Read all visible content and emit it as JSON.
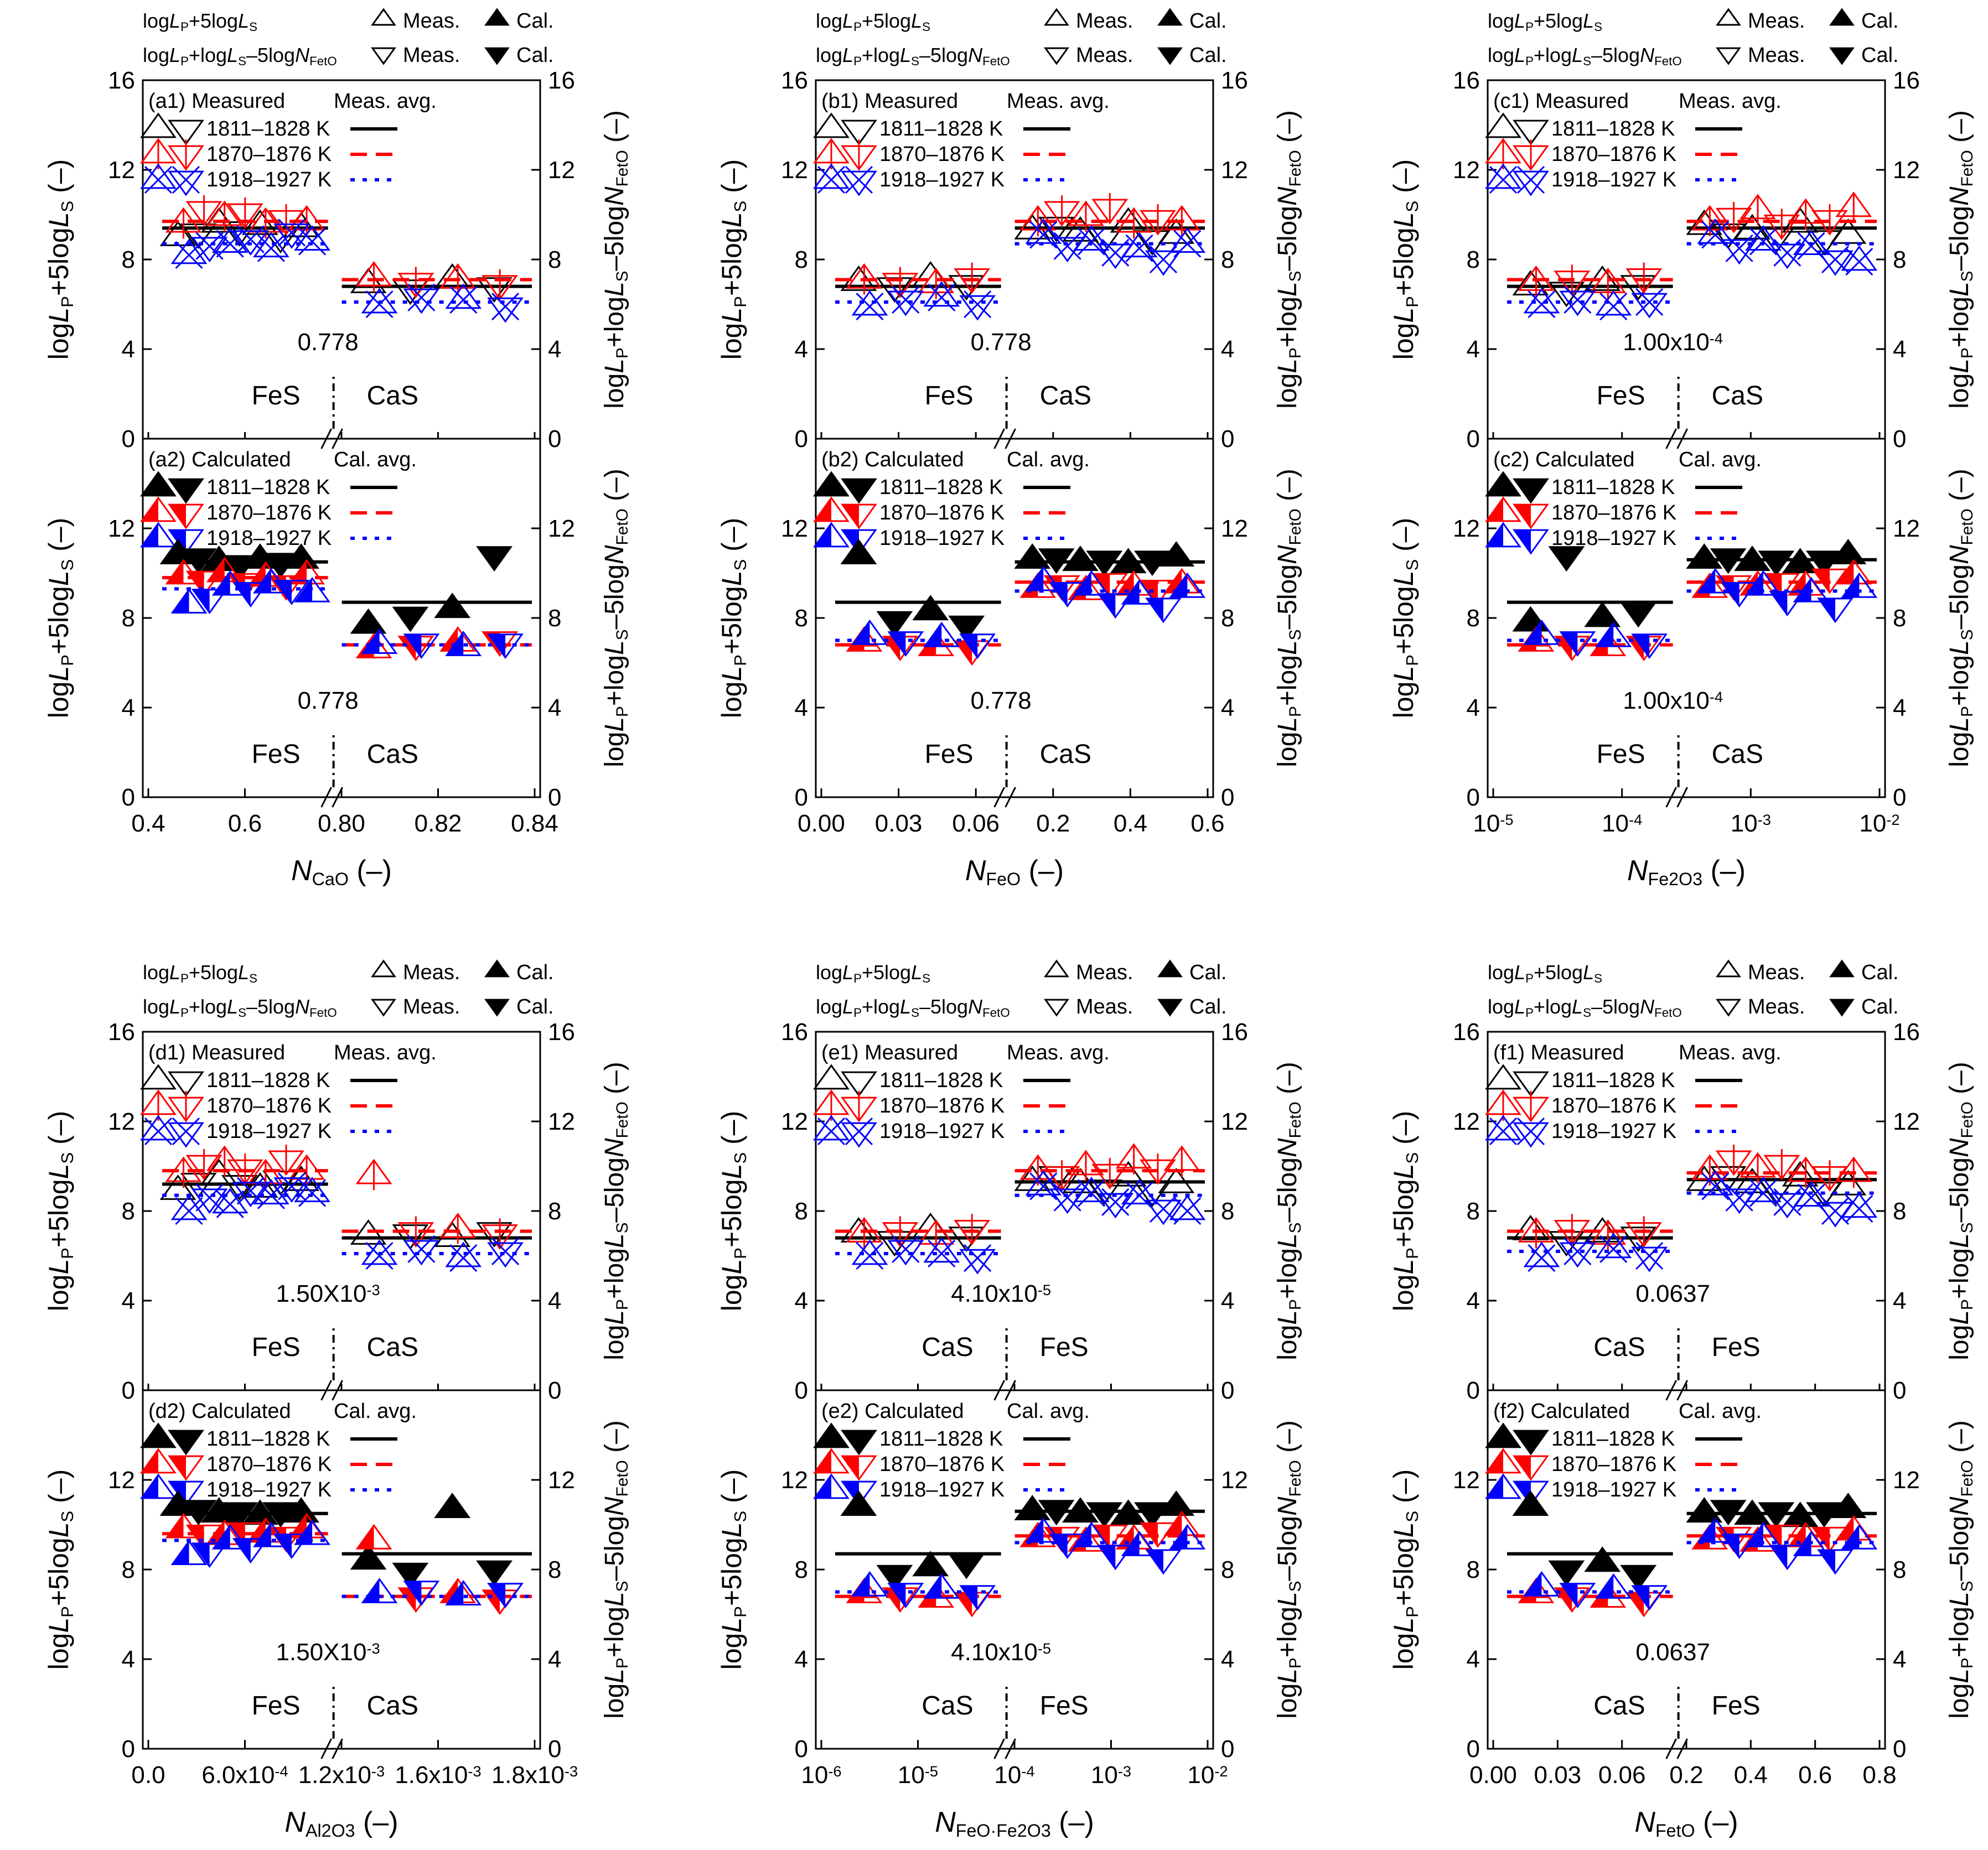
{
  "figure": {
    "type": "multi-panel scatter plot",
    "panel_ids": [
      "a",
      "b",
      "c",
      "d",
      "e",
      "f"
    ]
  },
  "legend_text": {
    "row1_label": "logLP+5logLS",
    "row2_label": "logLP+logLS–5logNFetO",
    "meas": "Meas.",
    "cal": "Cal.",
    "meas_avg": "Meas. avg.",
    "cal_avg": "Cal. avg.",
    "measured": "Measured",
    "calculated": "Calculated",
    "temps": [
      "1811–1828 K",
      "1870–1876 K",
      "1918–1927 K"
    ]
  },
  "axis_text": {
    "y_left": "logLP+5logLS (–)",
    "y_right": "logLP+logLS–5logNFetO (–)",
    "dash_unit": "(–)"
  },
  "colors": {
    "T1": "#000000",
    "T2": "#ff0000",
    "T3": "#0000ff",
    "extra": "#00cc00"
  },
  "chart_data": [
    {
      "id": "a",
      "type": "scatter",
      "xlabel": "NCaO (–)",
      "x_main": "N",
      "x_sub": "CaO",
      "ylim": [
        0,
        16
      ],
      "yticks": [
        "0",
        "4",
        "8",
        "12",
        "16"
      ],
      "xticks": [
        "0.4",
        "0.6",
        "0.80",
        "0.82",
        "0.84"
      ],
      "break_value": "0.778",
      "left_phase": "FeS",
      "right_phase": "CaS",
      "top": {
        "tag": "(a1)",
        "avg": {
          "T1": [
            9.4,
            6.8
          ],
          "T2": [
            9.7,
            7.1
          ],
          "T3": [
            8.7,
            6.1
          ]
        },
        "left": {
          "T1": [
            9.0,
            9.2,
            9.6,
            9.3,
            9.5,
            9.0,
            9.4
          ],
          "T2": [
            9.6,
            10.2,
            9.9,
            10.1,
            9.6,
            9.8,
            9.7
          ],
          "T3": [
            8.2,
            8.6,
            8.7,
            8.9,
            8.5,
            9.2,
            8.8
          ]
        },
        "right": {
          "T1": [
            6.9,
            6.7,
            7.1,
            6.8
          ],
          "T2": [
            7.2,
            7.0,
            7.1,
            6.9
          ],
          "T3": [
            6.0,
            6.3,
            6.2,
            5.9
          ]
        }
      },
      "bottom": {
        "tag": "(a2)",
        "avg": {
          "T1": [
            10.5,
            8.7
          ],
          "T2": [
            9.8,
            6.8
          ],
          "T3": [
            9.3,
            6.8
          ]
        },
        "left": {
          "T1": [
            10.8,
            10.7,
            10.5,
            10.4,
            10.6,
            10.5,
            10.6
          ],
          "T2": [
            9.9,
            9.7,
            10.0,
            9.6,
            9.8,
            9.5,
            9.9
          ],
          "T3": [
            8.6,
            8.9,
            9.4,
            9.2,
            9.5,
            9.3,
            9.1
          ]
        },
        "right": {
          "T1": [
            7.7,
            8.1,
            8.4,
            10.8
          ],
          "T2": [
            6.6,
            6.8,
            6.9,
            7.0
          ],
          "T3": [
            6.8,
            6.9,
            6.7,
            6.9
          ]
        }
      }
    },
    {
      "id": "b",
      "type": "scatter",
      "xlabel": "NFeO (–)",
      "x_main": "N",
      "x_sub": "FeO",
      "ylim": [
        0,
        16
      ],
      "yticks": [
        "0",
        "4",
        "8",
        "12",
        "16"
      ],
      "xticks": [
        "0.00",
        "0.03",
        "0.06",
        "0.2",
        "0.4",
        "0.6"
      ],
      "break_value": "0.778",
      "left_phase": "FeS",
      "right_phase": "CaS",
      "top": {
        "tag": "(b1)",
        "avg": {
          "T1": [
            6.8,
            9.4
          ],
          "T2": [
            7.1,
            9.7
          ],
          "T3": [
            6.1,
            8.7
          ]
        },
        "left": {
          "T1": [
            7.0,
            6.8,
            7.2,
            6.9
          ],
          "T2": [
            7.1,
            7.0,
            6.9,
            7.2
          ],
          "T3": [
            5.9,
            6.2,
            6.3,
            6.0
          ]
        },
        "right": {
          "T1": [
            9.3,
            9.5,
            9.2,
            9.0,
            9.6,
            8.9,
            9.1
          ],
          "T2": [
            9.7,
            10.2,
            9.9,
            10.3,
            9.6,
            9.8,
            9.7
          ],
          "T3": [
            9.1,
            8.6,
            8.8,
            8.3,
            8.5,
            8.0,
            8.7
          ]
        }
      },
      "bottom": {
        "tag": "(b2)",
        "avg": {
          "T1": [
            8.7,
            10.5
          ],
          "T2": [
            6.8,
            9.6
          ],
          "T3": [
            7.0,
            9.2
          ]
        },
        "left": {
          "T1": [
            10.8,
            7.9,
            8.3,
            7.7
          ],
          "T2": [
            6.9,
            6.8,
            6.7,
            6.6
          ],
          "T3": [
            7.2,
            7.0,
            7.1,
            6.9
          ]
        },
        "right": {
          "T1": [
            10.6,
            10.7,
            10.5,
            10.6,
            10.4,
            10.6,
            10.7
          ],
          "T2": [
            9.3,
            9.5,
            9.2,
            9.6,
            9.4,
            9.3,
            9.5
          ],
          "T3": [
            9.6,
            9.2,
            9.4,
            8.7,
            9.0,
            8.5,
            9.3
          ]
        }
      }
    },
    {
      "id": "c",
      "type": "scatter",
      "xlabel": "NFe2O3 (–)",
      "x_main": "N",
      "x_sub": "Fe2O3",
      "ylim": [
        0,
        16
      ],
      "yticks": [
        "0",
        "4",
        "8",
        "12",
        "16"
      ],
      "xticks": [
        "10-5",
        "10-4",
        "10-3",
        "10-2"
      ],
      "break_value": "1.00x10-4",
      "left_phase": "FeS",
      "right_phase": "CaS",
      "top": {
        "tag": "(c1)",
        "avg": {
          "T1": [
            6.8,
            9.4
          ],
          "T2": [
            7.1,
            9.7
          ],
          "T3": [
            6.1,
            8.7
          ]
        },
        "left": {
          "T1": [
            6.8,
            6.6,
            7.0,
            6.9
          ],
          "T2": [
            7.0,
            7.1,
            6.9,
            7.2
          ],
          "T3": [
            6.0,
            6.2,
            5.9,
            6.1
          ]
        },
        "right": {
          "T1": [
            9.5,
            9.2,
            9.3,
            9.0,
            9.6,
            8.9,
            9.1
          ],
          "T2": [
            9.7,
            9.9,
            10.2,
            9.6,
            10.0,
            9.8,
            10.3
          ],
          "T3": [
            9.1,
            8.5,
            8.8,
            8.3,
            8.6,
            8.0,
            7.9
          ]
        }
      },
      "bottom": {
        "tag": "(c2)",
        "avg": {
          "T1": [
            8.7,
            10.6
          ],
          "T2": [
            6.8,
            9.6
          ],
          "T3": [
            7.0,
            9.2
          ]
        },
        "left": {
          "T1": [
            7.8,
            10.8,
            8.0,
            8.3
          ],
          "T2": [
            6.9,
            6.8,
            6.7,
            6.8
          ],
          "T3": [
            7.2,
            7.0,
            7.1,
            6.9
          ]
        },
        "right": {
          "T1": [
            10.6,
            10.7,
            10.5,
            10.6,
            10.4,
            10.6,
            10.8
          ],
          "T2": [
            9.3,
            9.5,
            9.4,
            9.6,
            9.4,
            9.8,
            9.9
          ],
          "T3": [
            9.5,
            9.2,
            9.4,
            8.8,
            9.1,
            8.5,
            9.3
          ]
        }
      }
    },
    {
      "id": "d",
      "type": "scatter",
      "xlabel": "NAl2O3 (–)",
      "x_main": "N",
      "x_sub": "Al2O3",
      "ylim": [
        0,
        16
      ],
      "yticks": [
        "0",
        "4",
        "8",
        "12",
        "16"
      ],
      "xticks": [
        "0.0",
        "6.0x10-4",
        "1.2x10-3",
        "1.6x10-3",
        "1.8x10-3"
      ],
      "break_value": "1.50X10-3",
      "left_phase": "FeS",
      "right_phase": "CaS",
      "top": {
        "tag": "(d1)",
        "avg": {
          "T1": [
            9.2,
            6.8
          ],
          "T2": [
            9.8,
            7.1
          ],
          "T3": [
            8.7,
            6.1
          ]
        },
        "left": {
          "T1": [
            8.9,
            9.3,
            9.6,
            9.2,
            9.0,
            9.4,
            9.3
          ],
          "T2": [
            9.7,
            10.1,
            10.2,
            9.9,
            9.6,
            10.3,
            9.8
          ],
          "T3": [
            8.0,
            8.6,
            8.3,
            8.9,
            8.7,
            9.1,
            8.8
          ]
        },
        "right": {
          "T1": [
            6.9,
            7.0,
            6.8,
            7.1
          ],
          "T2": [
            9.6,
            7.1,
            7.2,
            7.0
          ],
          "T3": [
            6.0,
            6.3,
            5.9,
            6.2
          ]
        }
      },
      "bottom": {
        "tag": "(d2)",
        "avg": {
          "T1": [
            10.5,
            8.7
          ],
          "T2": [
            9.6,
            6.8
          ],
          "T3": [
            9.3,
            6.8
          ]
        },
        "left": {
          "T1": [
            10.8,
            10.7,
            10.5,
            10.6,
            10.4,
            10.6,
            10.5
          ],
          "T2": [
            9.8,
            9.6,
            9.5,
            9.7,
            9.6,
            9.5,
            9.8
          ],
          "T3": [
            8.6,
            8.8,
            9.3,
            9.0,
            9.4,
            9.2,
            9.5
          ]
        },
        "right": {
          "T1": [
            8.4,
            7.9,
            10.7,
            8.0
          ],
          "T2": [
            9.3,
            6.8,
            6.9,
            6.7
          ],
          "T3": [
            6.9,
            7.1,
            6.8,
            7.0
          ]
        }
      }
    },
    {
      "id": "e",
      "type": "scatter",
      "xlabel": "NFeO·Fe2O3 (–)",
      "x_main": "N",
      "x_sub": "FeO·Fe2O3",
      "ylim": [
        0,
        16
      ],
      "yticks": [
        "0",
        "4",
        "8",
        "12",
        "16"
      ],
      "xticks": [
        "10-6",
        "10-5",
        "10-4",
        "10-3",
        "10-2"
      ],
      "break_value": "4.10x10-5",
      "left_phase": "CaS",
      "right_phase": "FeS",
      "top": {
        "tag": "(e1)",
        "avg": {
          "T1": [
            6.8,
            9.3
          ],
          "T2": [
            7.1,
            9.8
          ],
          "T3": [
            6.1,
            8.7
          ]
        },
        "left": {
          "T1": [
            7.0,
            6.7,
            7.2,
            6.9
          ],
          "T2": [
            7.0,
            7.1,
            6.9,
            7.2
          ],
          "T3": [
            6.0,
            6.3,
            6.1,
            5.9
          ]
        },
        "right": {
          "T1": [
            9.3,
            9.6,
            9.2,
            9.0,
            9.5,
            8.9,
            9.2
          ],
          "T2": [
            9.8,
            9.6,
            10.0,
            9.7,
            10.3,
            9.9,
            10.2
          ],
          "T3": [
            9.1,
            8.6,
            8.8,
            8.4,
            8.7,
            8.1,
            8.0
          ]
        }
      },
      "bottom": {
        "tag": "(e2)",
        "avg": {
          "T1": [
            8.7,
            10.6
          ],
          "T2": [
            6.8,
            9.5
          ],
          "T3": [
            7.0,
            9.2
          ]
        },
        "left": {
          "T1": [
            10.8,
            7.8,
            8.1,
            8.3
          ],
          "T2": [
            6.9,
            6.8,
            6.7,
            6.6
          ],
          "T3": [
            7.2,
            7.0,
            7.1,
            6.9
          ]
        },
        "right": {
          "T1": [
            10.6,
            10.7,
            10.5,
            10.6,
            10.4,
            10.6,
            10.8
          ],
          "T2": [
            9.4,
            9.5,
            9.2,
            9.6,
            9.3,
            9.7,
            9.9
          ],
          "T3": [
            9.6,
            9.2,
            9.4,
            8.7,
            9.0,
            8.5,
            9.3
          ]
        }
      }
    },
    {
      "id": "f",
      "type": "scatter",
      "xlabel": "NFetO (–)",
      "x_main": "N",
      "x_sub": "FetO",
      "ylim": [
        0,
        16
      ],
      "yticks": [
        "0",
        "4",
        "8",
        "12",
        "16"
      ],
      "xticks": [
        "0.00",
        "0.03",
        "0.06",
        "0.2",
        "0.4",
        "0.6",
        "0.8"
      ],
      "break_value": "0.0637",
      "left_phase": "CaS",
      "right_phase": "FeS",
      "top": {
        "tag": "(f1)",
        "avg": {
          "T1": [
            6.8,
            9.4
          ],
          "T2": [
            7.1,
            9.7
          ],
          "T3": [
            6.2,
            8.8
          ]
        },
        "left": {
          "T1": [
            7.1,
            6.7,
            7.0,
            6.9
          ],
          "T2": [
            7.0,
            7.2,
            6.9,
            7.1
          ],
          "T3": [
            5.9,
            6.2,
            6.3,
            6.0
          ]
        },
        "right": {
          "T1": [
            9.3,
            9.6,
            9.2,
            9.0,
            9.5,
            8.9,
            9.1
          ],
          "T2": [
            9.8,
            10.3,
            9.9,
            10.1,
            9.7,
            9.6,
            9.7
          ],
          "T3": [
            9.1,
            8.6,
            8.8,
            8.4,
            8.6,
            8.0,
            8.1
          ]
        }
      },
      "bottom": {
        "tag": "(f2)",
        "avg": {
          "T1": [
            8.7,
            10.5
          ],
          "T2": [
            6.8,
            9.5
          ],
          "T3": [
            7.0,
            9.2
          ]
        },
        "left": {
          "T1": [
            10.8,
            8.0,
            8.3,
            7.8
          ],
          "T2": [
            6.9,
            6.8,
            6.7,
            6.6
          ],
          "T3": [
            7.2,
            7.0,
            7.1,
            6.9
          ]
        },
        "right": {
          "T1": [
            10.5,
            10.7,
            10.4,
            10.6,
            10.3,
            10.6,
            10.7
          ],
          "T2": [
            9.3,
            9.5,
            9.2,
            9.6,
            9.4,
            9.5,
            9.7
          ],
          "T3": [
            9.6,
            9.2,
            9.4,
            8.7,
            9.0,
            8.5,
            9.3
          ]
        }
      }
    }
  ]
}
